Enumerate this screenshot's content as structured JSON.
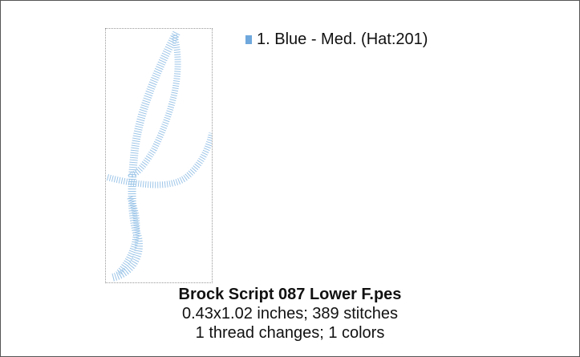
{
  "thread_list": [
    {
      "label": "1.  Blue - Med. (Hat:201)",
      "color": "#6fa8dc"
    }
  ],
  "caption": {
    "title": "Brock Script 087 Lower F.pes",
    "size_line": "0.43x1.02 inches; 389 stitches",
    "changes_line": "1 thread changes; 1 colors"
  }
}
